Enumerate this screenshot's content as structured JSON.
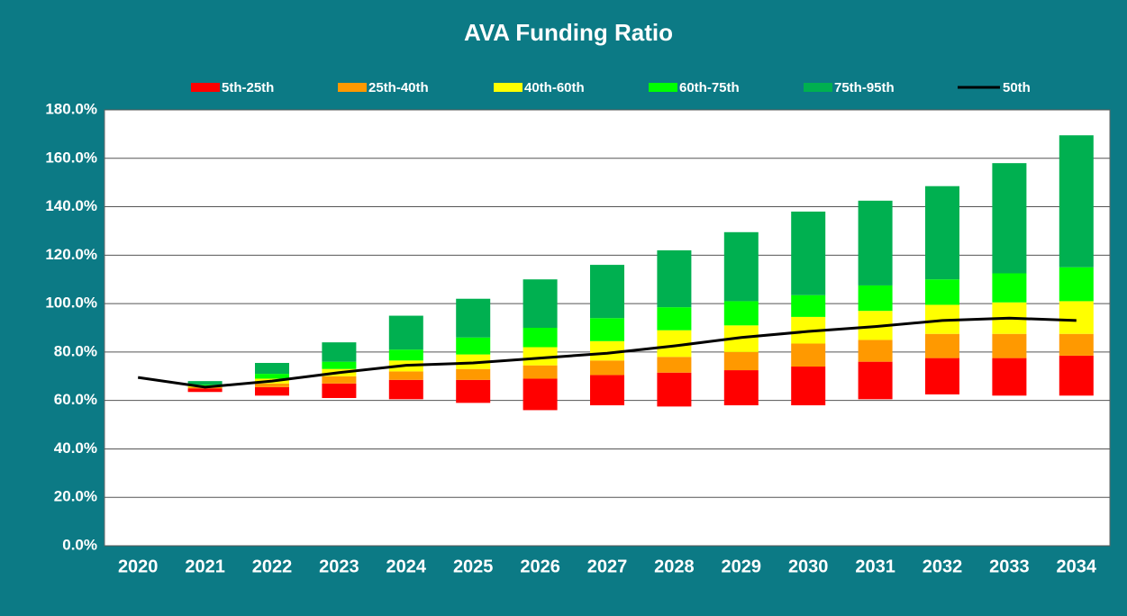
{
  "chart_data": {
    "type": "floating_stacked_bar_line",
    "title": "AVA Funding Ratio",
    "categories": [
      "2020",
      "2021",
      "2022",
      "2023",
      "2024",
      "2025",
      "2026",
      "2027",
      "2028",
      "2029",
      "2030",
      "2031",
      "2032",
      "2033",
      "2034"
    ],
    "base": [
      null,
      63.5,
      62,
      61,
      60.5,
      59,
      56,
      58,
      57.5,
      58,
      58,
      60.5,
      62.5,
      62,
      62
    ],
    "series": [
      {
        "name": "5th-25th",
        "color": "#ff0000",
        "values": [
          null,
          1.5,
          3.5,
          6,
          8,
          9.5,
          13,
          12.5,
          14,
          14.5,
          16,
          15.5,
          15,
          15.5,
          16.5
        ]
      },
      {
        "name": "25th-40th",
        "color": "#ff9900",
        "values": [
          null,
          0.5,
          1.5,
          3,
          3.5,
          4.5,
          5.5,
          6,
          6.5,
          7.5,
          9.5,
          9,
          10,
          10,
          9
        ]
      },
      {
        "name": "40th-60th",
        "color": "#ffff00",
        "values": [
          null,
          0.5,
          2,
          3,
          4.5,
          6,
          7.5,
          8,
          11,
          11,
          11,
          12,
          12,
          13,
          13.5
        ]
      },
      {
        "name": "60th-75th",
        "color": "#00ff00",
        "values": [
          null,
          0.5,
          2,
          3,
          4.5,
          7,
          8,
          9.5,
          9.5,
          10,
          9,
          10.5,
          10.5,
          12,
          14
        ]
      },
      {
        "name": "75th-95th",
        "color": "#00b050",
        "values": [
          null,
          1.5,
          4.5,
          8,
          14,
          16,
          20,
          22,
          23.5,
          28.5,
          34.5,
          35,
          38.5,
          45.5,
          54.5
        ]
      }
    ],
    "line": {
      "name": "50th",
      "color": "#000000",
      "values": [
        69.5,
        65.5,
        68,
        71.5,
        74.5,
        75.5,
        77.5,
        79.5,
        82.5,
        86,
        88.5,
        90.5,
        93,
        94,
        93
      ]
    },
    "ylim": [
      0,
      180
    ],
    "yticks": [
      {
        "value": 0,
        "label": "0.0%"
      },
      {
        "value": 20,
        "label": "20.0%"
      },
      {
        "value": 40,
        "label": "40.0%"
      },
      {
        "value": 60,
        "label": "60.0%"
      },
      {
        "value": 80,
        "label": "80.0%"
      },
      {
        "value": 100,
        "label": "100.0%"
      },
      {
        "value": 120,
        "label": "120.0%"
      },
      {
        "value": 140,
        "label": "140.0%"
      },
      {
        "value": 160,
        "label": "160.0%"
      },
      {
        "value": 180,
        "label": "180.0%"
      }
    ],
    "grid": true
  }
}
